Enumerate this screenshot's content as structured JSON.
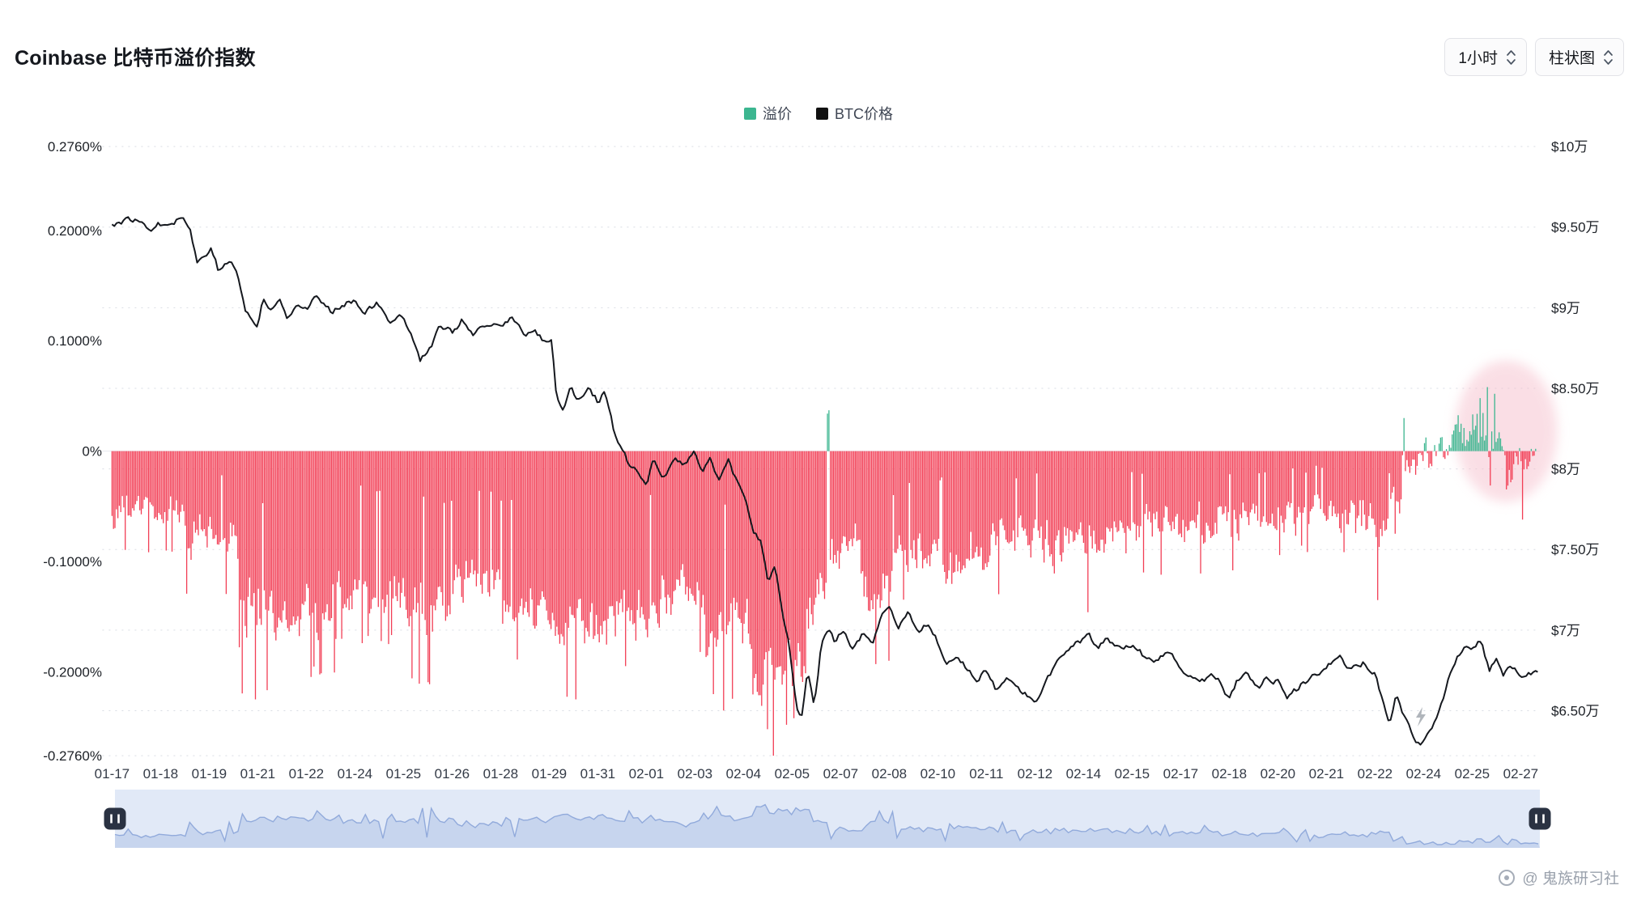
{
  "header": {
    "title": "Coinbase 比特币溢价指数"
  },
  "controls": {
    "interval": {
      "value": "1小时"
    },
    "chart_type": {
      "value": "柱状图"
    }
  },
  "legend": {
    "premium": {
      "label": "溢价",
      "color": "#3CB690"
    },
    "btc": {
      "label": "BTC价格",
      "color": "#111111"
    }
  },
  "watermark": {
    "text": "@ 鬼族研习社"
  },
  "chart_data": {
    "type": "bar",
    "title": "Coinbase 比特币溢价指数",
    "interval": "1小时",
    "series_info": [
      {
        "name": "溢价",
        "type": "bar",
        "axis": "left",
        "unit": "%",
        "color_positive": "#3CB690",
        "color_negative": "#F23E55"
      },
      {
        "name": "BTC价格",
        "type": "line",
        "axis": "right",
        "unit": "$万",
        "color": "#15181e"
      }
    ],
    "x_axis": {
      "ticks": [
        "01-17",
        "01-18",
        "01-19",
        "01-21",
        "01-22",
        "01-24",
        "01-25",
        "01-26",
        "01-28",
        "01-29",
        "01-31",
        "02-01",
        "02-03",
        "02-04",
        "02-05",
        "02-07",
        "02-08",
        "02-10",
        "02-11",
        "02-12",
        "02-14",
        "02-15",
        "02-17",
        "02-18",
        "02-20",
        "02-21",
        "02-22",
        "02-24",
        "02-25",
        "02-27"
      ],
      "units": "x values below are fractional tick indexes into this tick list",
      "max_index": 29.35
    },
    "left_axis": {
      "ticks": [
        "0.2760%",
        "0.2000%",
        "0.1000%",
        "0%",
        "-0.1000%",
        "-0.2000%",
        "-0.2760%"
      ],
      "values": [
        0.276,
        0.2,
        0.1,
        0,
        -0.1,
        -0.2,
        -0.276
      ],
      "range": [
        -0.276,
        0.276
      ]
    },
    "right_axis": {
      "ticks": [
        "$10万",
        "$9.50万",
        "$9万",
        "$8.50万",
        "$8万",
        "$7.50万",
        "$7万",
        "$6.50万"
      ],
      "values_wan": [
        10,
        9.5,
        9,
        8.5,
        8,
        7.5,
        7,
        6.5
      ],
      "range_wan": [
        6.2,
        10
      ]
    },
    "premium_envelope": [
      {
        "from": 0.0,
        "to": 1.5,
        "min": -0.085,
        "max": -0.025
      },
      {
        "from": 1.5,
        "to": 2.6,
        "min": -0.125,
        "max": -0.04
      },
      {
        "from": 2.6,
        "to": 3.2,
        "min": -0.21,
        "max": -0.07
      },
      {
        "from": 3.2,
        "to": 4.6,
        "min": -0.195,
        "max": -0.09
      },
      {
        "from": 4.6,
        "to": 6.0,
        "min": -0.165,
        "max": -0.08
      },
      {
        "from": 6.0,
        "to": 7.0,
        "min": -0.2,
        "max": -0.1
      },
      {
        "from": 7.0,
        "to": 8.0,
        "min": -0.155,
        "max": -0.08
      },
      {
        "from": 8.0,
        "to": 9.0,
        "min": -0.185,
        "max": -0.1
      },
      {
        "from": 9.0,
        "to": 10.2,
        "min": -0.215,
        "max": -0.12
      },
      {
        "from": 10.2,
        "to": 11.3,
        "min": -0.19,
        "max": -0.1
      },
      {
        "from": 11.3,
        "to": 12.2,
        "min": -0.175,
        "max": -0.09
      },
      {
        "from": 12.2,
        "to": 13.1,
        "min": -0.215,
        "max": -0.11
      },
      {
        "from": 13.1,
        "to": 14.3,
        "min": -0.26,
        "max": -0.13
      },
      {
        "from": 14.3,
        "to": 14.72,
        "min": -0.185,
        "max": -0.07
      },
      {
        "from": 14.72,
        "to": 14.78,
        "min": 0.03,
        "max": 0.037
      },
      {
        "from": 14.78,
        "to": 15.4,
        "min": -0.13,
        "max": -0.05
      },
      {
        "from": 15.4,
        "to": 16.1,
        "min": -0.185,
        "max": -0.07
      },
      {
        "from": 16.1,
        "to": 17.1,
        "min": -0.13,
        "max": -0.05
      },
      {
        "from": 17.1,
        "to": 18.1,
        "min": -0.15,
        "max": -0.05
      },
      {
        "from": 18.1,
        "to": 19.6,
        "min": -0.125,
        "max": -0.04
      },
      {
        "from": 19.6,
        "to": 21.2,
        "min": -0.115,
        "max": -0.035
      },
      {
        "from": 21.2,
        "to": 23.2,
        "min": -0.105,
        "max": -0.03
      },
      {
        "from": 23.2,
        "to": 24.4,
        "min": -0.09,
        "max": -0.025
      },
      {
        "from": 24.4,
        "to": 25.6,
        "min": -0.085,
        "max": -0.02
      },
      {
        "from": 25.6,
        "to": 26.3,
        "min": -0.12,
        "max": -0.02
      },
      {
        "from": 26.3,
        "to": 26.55,
        "min": -0.07,
        "max": -0.005
      },
      {
        "from": 26.55,
        "to": 26.85,
        "min": -0.04,
        "max": 0.025
      },
      {
        "from": 26.85,
        "to": 27.6,
        "min": -0.035,
        "max": 0.035
      },
      {
        "from": 27.6,
        "to": 28.7,
        "min": -0.022,
        "max": 0.058
      },
      {
        "from": 28.7,
        "to": 29.4,
        "min": -0.06,
        "max": 0.03
      }
    ],
    "premium_spikes": [
      {
        "i": 2.95,
        "v": -0.225
      },
      {
        "i": 9.55,
        "v": -0.225
      },
      {
        "i": 12.6,
        "v": -0.235
      },
      {
        "i": 13.5,
        "v": -0.252
      },
      {
        "i": 13.62,
        "v": -0.276
      },
      {
        "i": 13.9,
        "v": -0.248
      },
      {
        "i": 14.05,
        "v": -0.242
      },
      {
        "i": 14.75,
        "v": 0.037
      },
      {
        "i": 16.0,
        "v": -0.19
      },
      {
        "i": 20.1,
        "v": -0.146
      },
      {
        "i": 26.05,
        "v": -0.135
      },
      {
        "i": 26.6,
        "v": 0.03
      },
      {
        "i": 28.15,
        "v": 0.048
      },
      {
        "i": 28.3,
        "v": 0.058
      },
      {
        "i": 28.45,
        "v": 0.052
      },
      {
        "i": 29.05,
        "v": -0.062
      }
    ],
    "btc_line_keypoints": [
      [
        0,
        9.52
      ],
      [
        0.4,
        9.55
      ],
      [
        0.8,
        9.5
      ],
      [
        1.1,
        9.53
      ],
      [
        1.45,
        9.56
      ],
      [
        1.6,
        9.5
      ],
      [
        1.75,
        9.28
      ],
      [
        1.9,
        9.32
      ],
      [
        2.05,
        9.38
      ],
      [
        2.2,
        9.22
      ],
      [
        2.45,
        9.3
      ],
      [
        2.6,
        9.18
      ],
      [
        2.75,
        8.98
      ],
      [
        3.0,
        8.88
      ],
      [
        3.1,
        9.05
      ],
      [
        3.25,
        8.98
      ],
      [
        3.45,
        9.05
      ],
      [
        3.6,
        8.95
      ],
      [
        3.8,
        9.03
      ],
      [
        4.0,
        9.0
      ],
      [
        4.2,
        9.07
      ],
      [
        4.5,
        8.97
      ],
      [
        4.75,
        9.03
      ],
      [
        5.0,
        9.05
      ],
      [
        5.2,
        8.98
      ],
      [
        5.45,
        9.02
      ],
      [
        5.7,
        8.92
      ],
      [
        5.9,
        8.96
      ],
      [
        6.1,
        8.88
      ],
      [
        6.35,
        8.68
      ],
      [
        6.55,
        8.75
      ],
      [
        6.75,
        8.88
      ],
      [
        7.0,
        8.85
      ],
      [
        7.2,
        8.92
      ],
      [
        7.45,
        8.82
      ],
      [
        7.7,
        8.89
      ],
      [
        8.0,
        8.88
      ],
      [
        8.25,
        8.95
      ],
      [
        8.5,
        8.82
      ],
      [
        8.7,
        8.86
      ],
      [
        8.9,
        8.78
      ],
      [
        9.05,
        8.82
      ],
      [
        9.15,
        8.45
      ],
      [
        9.3,
        8.36
      ],
      [
        9.45,
        8.52
      ],
      [
        9.6,
        8.42
      ],
      [
        9.8,
        8.52
      ],
      [
        10.0,
        8.42
      ],
      [
        10.15,
        8.48
      ],
      [
        10.35,
        8.2
      ],
      [
        10.6,
        8.05
      ],
      [
        10.8,
        7.98
      ],
      [
        11.0,
        7.88
      ],
      [
        11.15,
        8.06
      ],
      [
        11.35,
        7.96
      ],
      [
        11.6,
        8.06
      ],
      [
        11.8,
        8.02
      ],
      [
        12.0,
        8.12
      ],
      [
        12.15,
        7.98
      ],
      [
        12.3,
        8.08
      ],
      [
        12.5,
        7.92
      ],
      [
        12.7,
        8.05
      ],
      [
        12.9,
        7.88
      ],
      [
        13.05,
        7.8
      ],
      [
        13.2,
        7.62
      ],
      [
        13.35,
        7.55
      ],
      [
        13.5,
        7.32
      ],
      [
        13.65,
        7.38
      ],
      [
        13.8,
        7.12
      ],
      [
        13.95,
        6.88
      ],
      [
        14.1,
        6.52
      ],
      [
        14.2,
        6.46
      ],
      [
        14.32,
        6.76
      ],
      [
        14.45,
        6.52
      ],
      [
        14.6,
        6.9
      ],
      [
        14.75,
        7.02
      ],
      [
        14.9,
        6.92
      ],
      [
        15.05,
        7.0
      ],
      [
        15.25,
        6.88
      ],
      [
        15.45,
        6.98
      ],
      [
        15.65,
        6.9
      ],
      [
        15.85,
        7.08
      ],
      [
        16.0,
        7.12
      ],
      [
        16.2,
        7.02
      ],
      [
        16.4,
        7.1
      ],
      [
        16.6,
        6.96
      ],
      [
        16.8,
        7.04
      ],
      [
        17.0,
        6.92
      ],
      [
        17.2,
        6.8
      ],
      [
        17.4,
        6.86
      ],
      [
        17.6,
        6.76
      ],
      [
        17.8,
        6.7
      ],
      [
        18.0,
        6.74
      ],
      [
        18.2,
        6.62
      ],
      [
        18.4,
        6.7
      ],
      [
        18.6,
        6.66
      ],
      [
        18.8,
        6.6
      ],
      [
        19.0,
        6.56
      ],
      [
        19.2,
        6.68
      ],
      [
        19.45,
        6.8
      ],
      [
        19.7,
        6.88
      ],
      [
        19.9,
        6.92
      ],
      [
        20.1,
        6.96
      ],
      [
        20.3,
        6.88
      ],
      [
        20.5,
        6.95
      ],
      [
        20.7,
        6.9
      ],
      [
        21.0,
        6.92
      ],
      [
        21.25,
        6.84
      ],
      [
        21.5,
        6.8
      ],
      [
        21.75,
        6.86
      ],
      [
        22.0,
        6.76
      ],
      [
        22.2,
        6.7
      ],
      [
        22.4,
        6.66
      ],
      [
        22.6,
        6.73
      ],
      [
        22.8,
        6.68
      ],
      [
        23.0,
        6.56
      ],
      [
        23.15,
        6.68
      ],
      [
        23.35,
        6.72
      ],
      [
        23.6,
        6.66
      ],
      [
        23.8,
        6.7
      ],
      [
        24.0,
        6.68
      ],
      [
        24.2,
        6.59
      ],
      [
        24.45,
        6.65
      ],
      [
        24.7,
        6.72
      ],
      [
        25.0,
        6.78
      ],
      [
        25.25,
        6.84
      ],
      [
        25.5,
        6.76
      ],
      [
        25.75,
        6.8
      ],
      [
        26.0,
        6.72
      ],
      [
        26.15,
        6.55
      ],
      [
        26.3,
        6.42
      ],
      [
        26.45,
        6.6
      ],
      [
        26.6,
        6.47
      ],
      [
        26.8,
        6.32
      ],
      [
        27.0,
        6.3
      ],
      [
        27.15,
        6.36
      ],
      [
        27.35,
        6.52
      ],
      [
        27.6,
        6.78
      ],
      [
        27.85,
        6.92
      ],
      [
        28.05,
        6.88
      ],
      [
        28.2,
        6.94
      ],
      [
        28.35,
        6.74
      ],
      [
        28.5,
        6.82
      ],
      [
        28.65,
        6.72
      ],
      [
        28.8,
        6.78
      ],
      [
        29.0,
        6.7
      ],
      [
        29.2,
        6.74
      ],
      [
        29.35,
        6.73
      ]
    ],
    "highlight": {
      "x_tick_center": 28.7,
      "pct_center": 0.018,
      "x_tick_radius": 1.05,
      "pct_radius": 0.064,
      "color": "#F6BFCC",
      "opacity": 0.5
    },
    "grid": {
      "dashed_color": "#d9dde4",
      "legend_position": "top-center"
    }
  },
  "navigator": {
    "series": "abs(溢价)",
    "track_color": "#e9effa",
    "area_color": "#ccd9f0",
    "edge_color": "#92abdc",
    "handle_color": "#2a3242"
  }
}
